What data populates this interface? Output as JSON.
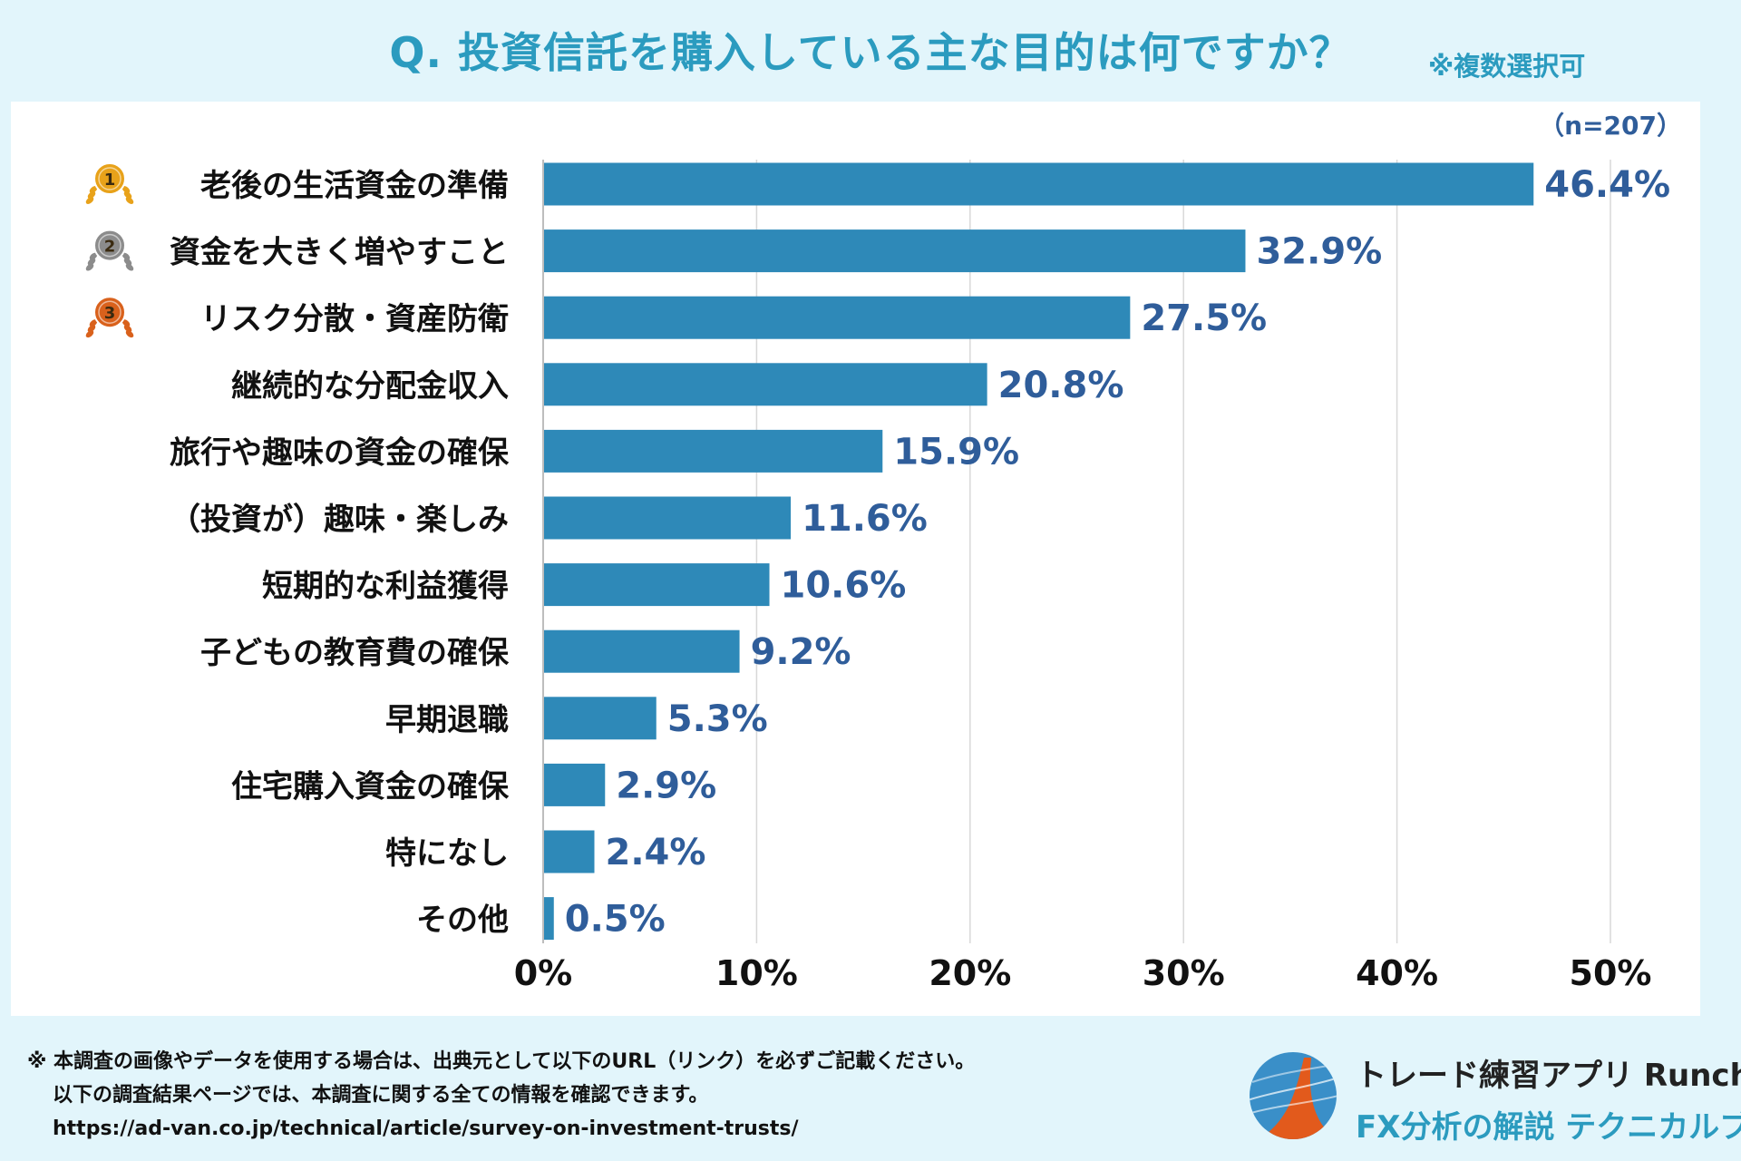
{
  "header": {
    "title": "Q. 投資信託を購入している主な目的は何ですか？",
    "multi_select_note": "※複数選択可"
  },
  "chart_data": {
    "type": "bar",
    "orientation": "horizontal",
    "sample_size_label": "（n=207）",
    "categories": [
      "老後の生活資金の準備",
      "資金を大きく増やすこと",
      "リスク分散・資産防衛",
      "継続的な分配金収入",
      "旅行や趣味の資金の確保",
      "（投資が）趣味・楽しみ",
      "短期的な利益獲得",
      "子どもの教育費の確保",
      "早期退職",
      "住宅購入資金の確保",
      "特になし",
      "その他"
    ],
    "values": [
      46.4,
      32.9,
      27.5,
      20.8,
      15.9,
      11.6,
      10.6,
      9.2,
      5.3,
      2.9,
      2.4,
      0.5
    ],
    "value_labels": [
      "46.4%",
      "32.9%",
      "27.5%",
      "20.8%",
      "15.9%",
      "11.6%",
      "10.6%",
      "9.2%",
      "5.3%",
      "2.9%",
      "2.4%",
      "0.5%"
    ],
    "rank_medals": [
      {
        "rank": "1",
        "color": "#e8a21a"
      },
      {
        "rank": "2",
        "color": "#8c8c8c"
      },
      {
        "rank": "3",
        "color": "#d9611c"
      }
    ],
    "x_ticks": [
      0,
      10,
      20,
      30,
      40,
      50
    ],
    "x_tick_labels": [
      "0%",
      "10%",
      "20%",
      "30%",
      "40%",
      "50%"
    ],
    "xlim": [
      0,
      50
    ],
    "grid": true,
    "colors": {
      "bar": "#2e89b8",
      "value_label": "#2f5d9a",
      "grid": "#d8d8d8",
      "category_label": "#111111"
    }
  },
  "footer": {
    "note_line1": "※ 本調査の画像やデータを使用する場合は、出典元として以下のURL（リンク）を必ずご記載ください。",
    "note_line2": "以下の調査結果ページでは、本調査に関する全ての情報を確認できます。",
    "url": "https://ad-van.co.jp/technical/article/survey-on-investment-trusts/",
    "brand_line1": "トレード練習アプリ  Runcha",
    "brand_line2": "FX分析の解説  テクニカルブック",
    "logo_icon": "runcha-logo-icon"
  }
}
